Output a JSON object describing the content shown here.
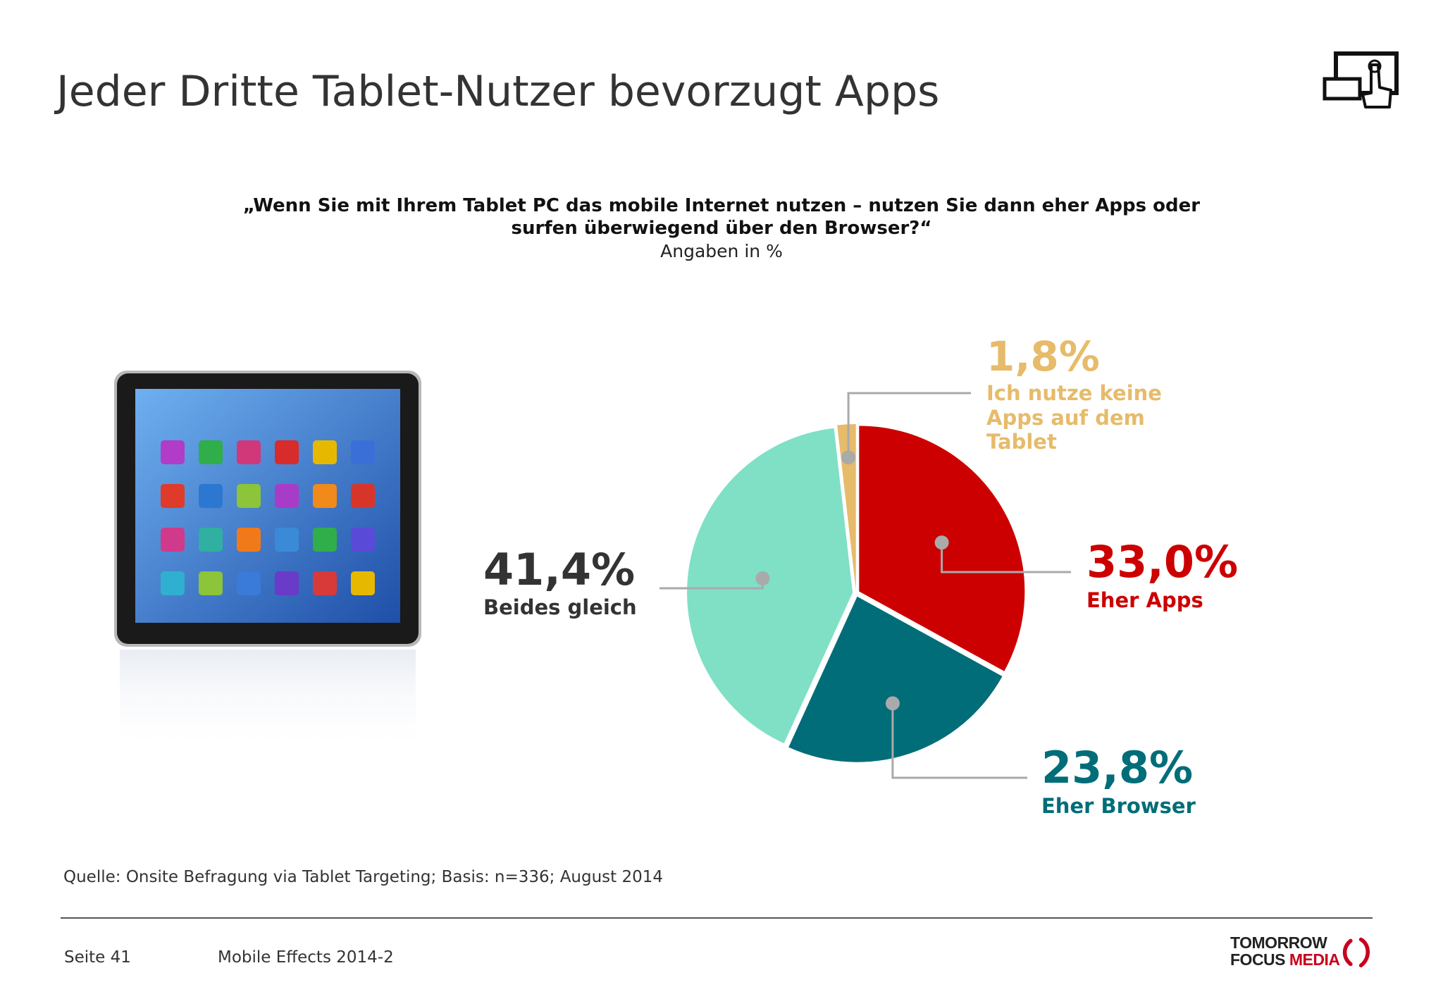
{
  "title": "Jeder Dritte Tablet-Nutzer bevorzugt Apps",
  "question": {
    "line1": "„Wenn Sie mit Ihrem Tablet PC das mobile Internet nutzen – nutzen Sie dann eher Apps oder",
    "line2": "surfen überwiegend über den Browser?“",
    "unit": "Angaben in %"
  },
  "icons": {
    "header_icon": "tablet-touch-icon",
    "illustration": "tablet-illustration"
  },
  "chart_data": {
    "type": "pie",
    "title": "„Wenn Sie mit Ihrem Tablet PC das mobile Internet nutzen – nutzen Sie dann eher Apps oder surfen überwiegend über den Browser?“",
    "subtitle": "Angaben in %",
    "start_angle_deg": 0,
    "direction": "clockwise",
    "slices": [
      {
        "label": "Eher Apps",
        "value": 33.0,
        "value_label": "33,0%",
        "color": "#cc0000"
      },
      {
        "label": "Eher Browser",
        "value": 23.8,
        "value_label": "23,8%",
        "color": "#006d78"
      },
      {
        "label": "Beides gleich",
        "value": 41.4,
        "value_label": "41,4%",
        "color": "#7fe0c6"
      },
      {
        "label": "Ich nutze keine Apps auf dem Tablet",
        "label_lines": [
          "Ich nutze keine",
          "Apps auf dem",
          "Tablet"
        ],
        "value": 1.8,
        "value_label": "1,8%",
        "color": "#e6bb6a"
      }
    ],
    "value_label_color_dark": "#333333",
    "leader_color": "#aaaaaa"
  },
  "footer": {
    "source": "Quelle: Onsite Befragung via Tablet Targeting; Basis: n=336; August 2014",
    "page": "Seite 41",
    "report": "Mobile Effects 2014-2",
    "logo_line1": "TOMORROW",
    "logo_line2_a": "FOCUS",
    "logo_line2_b": "MEDIA"
  }
}
